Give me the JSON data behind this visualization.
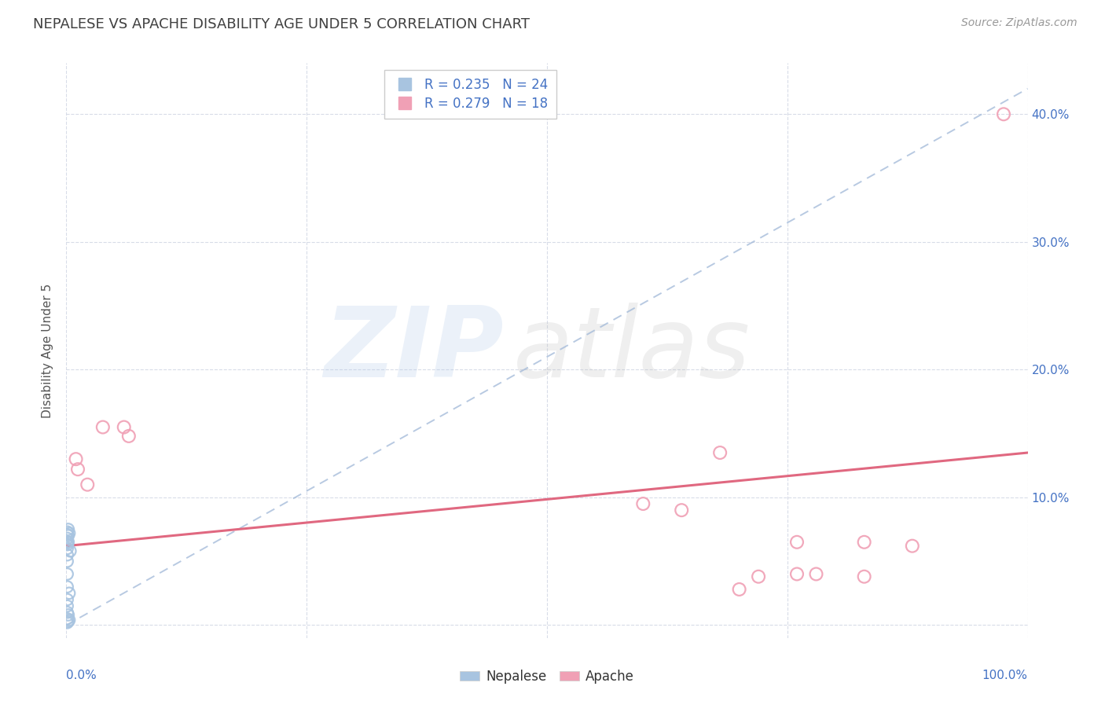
{
  "title": "NEPALESE VS APACHE DISABILITY AGE UNDER 5 CORRELATION CHART",
  "source": "Source: ZipAtlas.com",
  "ylabel": "Disability Age Under 5",
  "r_nepalese": 0.235,
  "n_nepalese": 24,
  "r_apache": 0.279,
  "n_apache": 18,
  "nepalese_scatter_color": "#a8c4e0",
  "apache_scatter_color": "#f0a0b5",
  "nepalese_line_color": "#a0b8d8",
  "apache_line_color": "#e06880",
  "grid_color": "#d8dce8",
  "title_color": "#404040",
  "axis_tick_color": "#4472c4",
  "xlim": [
    0.0,
    1.0
  ],
  "ylim": [
    -0.01,
    0.44
  ],
  "yticks": [
    0.0,
    0.1,
    0.2,
    0.3,
    0.4
  ],
  "ytick_labels": [
    "",
    "10.0%",
    "20.0%",
    "30.0%",
    "40.0%"
  ],
  "nepalese_line_x0": 0.0,
  "nepalese_line_y0": 0.0,
  "nepalese_line_x1": 1.0,
  "nepalese_line_y1": 0.42,
  "apache_line_x0": 0.0,
  "apache_line_y0": 0.062,
  "apache_line_x1": 1.0,
  "apache_line_y1": 0.135,
  "nepalese_x": [
    0.001,
    0.001,
    0.001,
    0.001,
    0.001,
    0.001,
    0.001,
    0.001,
    0.001,
    0.001,
    0.001,
    0.001,
    0.001,
    0.001,
    0.001,
    0.002,
    0.002,
    0.002,
    0.002,
    0.002,
    0.003,
    0.003,
    0.003,
    0.004
  ],
  "nepalese_y": [
    0.073,
    0.071,
    0.068,
    0.065,
    0.063,
    0.06,
    0.055,
    0.05,
    0.04,
    0.03,
    0.02,
    0.015,
    0.01,
    0.005,
    0.002,
    0.075,
    0.07,
    0.065,
    0.008,
    0.003,
    0.072,
    0.025,
    0.004,
    0.058
  ],
  "apache_x": [
    0.01,
    0.012,
    0.022,
    0.038,
    0.06,
    0.065,
    0.6,
    0.64,
    0.68,
    0.72,
    0.76,
    0.78,
    0.83,
    0.7,
    0.76,
    0.83,
    0.88,
    0.975
  ],
  "apache_y": [
    0.13,
    0.122,
    0.11,
    0.155,
    0.155,
    0.148,
    0.095,
    0.09,
    0.135,
    0.038,
    0.04,
    0.04,
    0.038,
    0.028,
    0.065,
    0.065,
    0.062,
    0.4
  ]
}
